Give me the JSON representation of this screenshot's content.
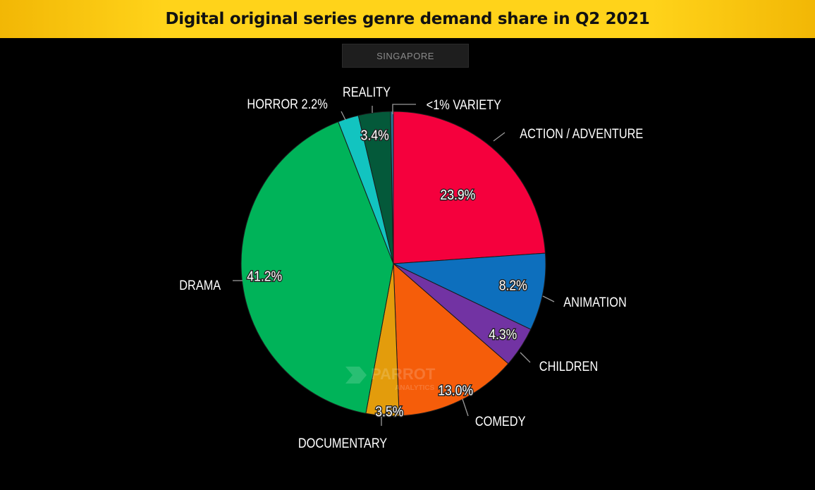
{
  "header": {
    "title_pre": "Digital original series ",
    "title_bold": "genre",
    "title_post": " demand share in Q2 2021",
    "region": "SINGAPORE"
  },
  "watermark": {
    "brand": "PARROT",
    "sub": "ANALYTICS"
  },
  "colors": {
    "title_bar": "#ffd31a",
    "background": "#000000"
  },
  "chart_data": {
    "type": "pie",
    "title": "Digital original series genre demand share in Q2 2021",
    "subtitle": "SINGAPORE",
    "unit": "%",
    "slices": [
      {
        "label": "ACTION / ADVENTURE",
        "value": 23.9,
        "value_text": "23.9%",
        "color": "#f5003d"
      },
      {
        "label": "ANIMATION",
        "value": 8.2,
        "value_text": "8.2%",
        "color": "#0d6fbd"
      },
      {
        "label": "CHILDREN",
        "value": 4.3,
        "value_text": "4.3%",
        "color": "#7233a3"
      },
      {
        "label": "COMEDY",
        "value": 13.0,
        "value_text": "13.0%",
        "color": "#f55d0a"
      },
      {
        "label": "DOCUMENTARY",
        "value": 3.5,
        "value_text": "3.5%",
        "color": "#e39c0c"
      },
      {
        "label": "DRAMA",
        "value": 41.2,
        "value_text": "41.2%",
        "color": "#00b359"
      },
      {
        "label": "HORROR 2.2%",
        "value": 2.2,
        "value_text": "",
        "color": "#12c4c0"
      },
      {
        "label": "REALITY",
        "value": 3.4,
        "value_text": "3.4%",
        "color": "#04593a"
      },
      {
        "label": "<1% VARIETY",
        "value": 0.3,
        "value_text": "",
        "color": "#2a7a9a"
      }
    ]
  }
}
